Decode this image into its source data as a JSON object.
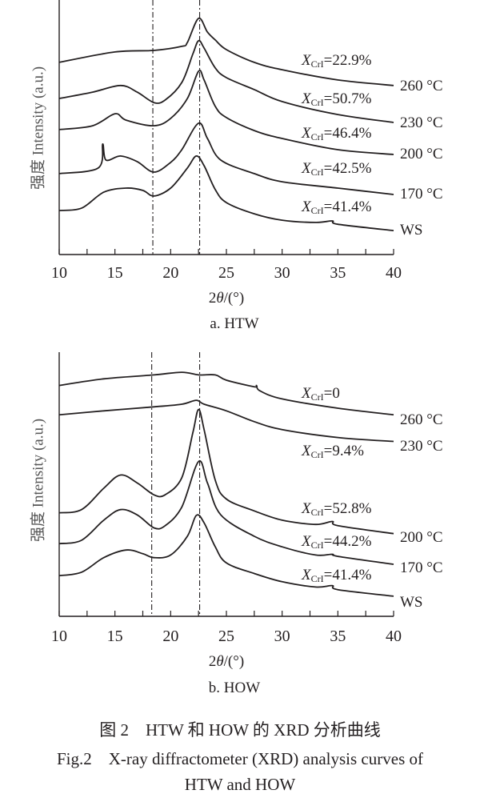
{
  "chart_data": [
    {
      "type": "line",
      "panel_title": "a. HTW",
      "xlabel_prefix": "2",
      "xlabel_symbol": "θ",
      "xlabel_suffix": "/(°)",
      "ylabel": "强度 Intensity (a.u.)",
      "xlim": [
        10,
        40
      ],
      "ylim": [
        0,
        100
      ],
      "xticks": [
        "10",
        "15",
        "20",
        "25",
        "30",
        "35",
        "40"
      ],
      "reference_lines": [
        18.4,
        22.6
      ],
      "series": [
        {
          "name": "260 °C",
          "xcri_symbol": "X",
          "xcri_sub": "CrI",
          "xcri_value": "=22.9%",
          "x": [
            10,
            15,
            18.5,
            21,
            21.5,
            22.5,
            23.3,
            24,
            25,
            27.5,
            30,
            35,
            40
          ],
          "y": [
            75.5,
            79.6,
            80.2,
            81.8,
            83.3,
            92.8,
            87.4,
            84.3,
            80.5,
            75.5,
            72.6,
            68.6,
            66.4
          ]
        },
        {
          "name": "230 °C",
          "xcri_symbol": "X",
          "xcri_sub": "CrI",
          "xcri_value": "=50.7%",
          "x": [
            10,
            13,
            15.5,
            17,
            18.5,
            19.5,
            21,
            22,
            22.5,
            23,
            24,
            25,
            27.5,
            30,
            35,
            40
          ],
          "y": [
            61.3,
            63.8,
            66.4,
            63.8,
            59.7,
            60.7,
            67.6,
            78.9,
            84.0,
            81.1,
            73.3,
            69.5,
            64.8,
            60.1,
            55.0,
            51.9
          ]
        },
        {
          "name": "200 °C",
          "xcri_symbol": "X",
          "xcri_sub": "CrI",
          "xcri_value": "=46.4%",
          "x": [
            10,
            13,
            15,
            16,
            18.5,
            20,
            21.5,
            22.5,
            23,
            24,
            25,
            27.5,
            30,
            35,
            40
          ],
          "y": [
            49.1,
            50.6,
            55.3,
            52.8,
            50.6,
            53.5,
            61.3,
            72.0,
            68.6,
            58.2,
            53.8,
            48.7,
            45.6,
            41.2,
            39.3
          ]
        },
        {
          "name": "170 °C",
          "xcri_symbol": "X",
          "xcri_sub": "CrI",
          "xcri_value": "=42.5%",
          "x": [
            10,
            13.5,
            13.9,
            14.2,
            15.5,
            17,
            18.5,
            20,
            21,
            22.5,
            23.3,
            24.5,
            27.5,
            30,
            35,
            40
          ],
          "y": [
            31.8,
            34.0,
            43.4,
            37.1,
            38.7,
            36.5,
            32.4,
            36.2,
            41.2,
            51.6,
            45.6,
            37.1,
            31.8,
            28.6,
            26.1,
            23.6
          ]
        },
        {
          "name": "WS",
          "xcri_symbol": "X",
          "xcri_sub": "CrI",
          "xcri_value": "=41.4%",
          "x": [
            10,
            12,
            14,
            16,
            17.5,
            18.5,
            20,
            21.5,
            22.3,
            23,
            24,
            25,
            27.5,
            30,
            33,
            34.5,
            35,
            40
          ],
          "y": [
            17.3,
            18.2,
            24.5,
            26.1,
            25.2,
            23.0,
            26.1,
            34.0,
            38.7,
            34.9,
            25.5,
            20.4,
            16.0,
            13.5,
            12.6,
            13.2,
            11.9,
            9.4
          ]
        }
      ]
    },
    {
      "type": "line",
      "panel_title": "b. HOW",
      "xlabel_prefix": "2",
      "xlabel_symbol": "θ",
      "xlabel_suffix": "/(°)",
      "ylabel": "强度 Intensity (a.u.)",
      "xlim": [
        10,
        40
      ],
      "ylim": [
        0,
        100
      ],
      "xticks": [
        "10",
        "15",
        "20",
        "25",
        "30",
        "35",
        "40"
      ],
      "reference_lines": [
        18.3,
        22.6
      ],
      "series": [
        {
          "name": "260 °C",
          "xcri_symbol": "X",
          "xcri_sub": "CrI",
          "xcri_value": "=0",
          "x": [
            10,
            14,
            18.5,
            21,
            22.5,
            24,
            25,
            27.5,
            27.7,
            28,
            30,
            35,
            40
          ],
          "y": [
            87.4,
            89.9,
            91.4,
            92.4,
            91.4,
            91.4,
            89.4,
            86.9,
            87.4,
            85.4,
            82.3,
            78.8,
            76.3
          ]
        },
        {
          "name": "230 °C",
          "xcri_symbol": "X",
          "xcri_sub": "CrI",
          "xcri_value": "=9.4%",
          "x": [
            10,
            14,
            18.5,
            21,
            22.3,
            23,
            25,
            27.5,
            30,
            35,
            40
          ],
          "y": [
            76.3,
            77.8,
            79.3,
            80.3,
            81.8,
            80.3,
            77.8,
            73.7,
            70.7,
            67.7,
            66.2
          ]
        },
        {
          "name": "200 °C",
          "xcri_symbol": "X",
          "xcri_sub": "CrI",
          "xcri_value": "=52.8%",
          "x": [
            10,
            12,
            14,
            15.5,
            17,
            18.5,
            19.5,
            21,
            22,
            22.5,
            23,
            24,
            25,
            27.5,
            30,
            33,
            34.5,
            35,
            40
          ],
          "y": [
            39.2,
            40.4,
            48.5,
            53.5,
            50.5,
            46.0,
            46.0,
            52.5,
            69.7,
            78.3,
            70.7,
            51.5,
            44.4,
            39.9,
            36.4,
            34.8,
            35.9,
            34.3,
            31.3
          ]
        },
        {
          "name": "170 °C",
          "xcri_symbol": "X",
          "xcri_sub": "CrI",
          "xcri_value": "=44.2%",
          "x": [
            10,
            12,
            14,
            15.5,
            17,
            18.5,
            19.5,
            21,
            22.5,
            23.3,
            24.5,
            27.5,
            30,
            33,
            34.5,
            35,
            40
          ],
          "y": [
            27.5,
            28.8,
            36.4,
            40.4,
            38.4,
            33.5,
            34.3,
            41.4,
            58.6,
            50.5,
            38.4,
            30.3,
            26.3,
            23.2,
            23.5,
            22.7,
            19.7
          ]
        },
        {
          "name": "WS",
          "xcri_symbol": "X",
          "xcri_sub": "CrI",
          "xcri_value": "=41.4%",
          "x": [
            10,
            12,
            14,
            16,
            17.5,
            18.5,
            20,
            21.5,
            22.3,
            23,
            24,
            25,
            27.5,
            30,
            33,
            34.5,
            35,
            40
          ],
          "y": [
            15.4,
            16.7,
            22.2,
            25.1,
            23.7,
            22.2,
            23.2,
            30.3,
            38.2,
            35.4,
            26.3,
            20.2,
            16.2,
            13.1,
            11.1,
            11.6,
            10.1,
            7.6
          ]
        }
      ]
    }
  ],
  "caption": {
    "zh": "图 2　HTW 和 HOW 的 XRD 分析曲线",
    "en_line1": "Fig.2　X-ray diffractometer (XRD) analysis curves of",
    "en_line2": "HTW and HOW"
  },
  "colors": {
    "line": "#231f20"
  }
}
